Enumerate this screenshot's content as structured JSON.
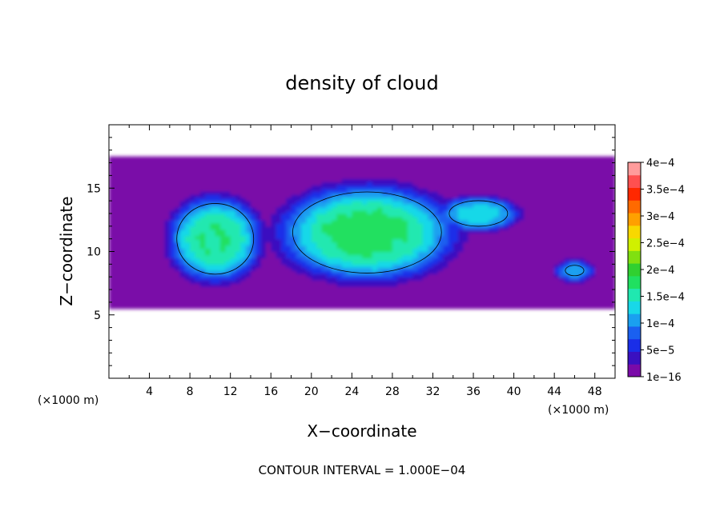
{
  "chart_data": {
    "type": "heatmap",
    "title": "density of cloud",
    "xlabel": "X−coordinate",
    "ylabel": "Z−coordinate",
    "x_unit_left": "(×1000 m)",
    "x_unit_right": "(×1000 m)",
    "xlim": [
      0,
      50
    ],
    "ylim": [
      0,
      20
    ],
    "x_ticks": [
      4,
      8,
      12,
      16,
      20,
      24,
      28,
      32,
      36,
      40,
      44,
      48
    ],
    "y_ticks": [
      5,
      10,
      15
    ],
    "contour_interval_label": "CONTOUR INTERVAL = 1.000E−04",
    "colorbar": {
      "labels": [
        "4e−4",
        "3.5e−4",
        "3e−4",
        "2.5e−4",
        "2e−4",
        "1.5e−4",
        "1e−4",
        "5e−5",
        "1e−16"
      ],
      "bands": [
        {
          "value": 1e-16,
          "color": "#7a0aa8"
        },
        {
          "value": 2.5e-05,
          "color": "#3a10c0"
        },
        {
          "value": 5e-05,
          "color": "#1a2ee8"
        },
        {
          "value": 7.5e-05,
          "color": "#1a60f0"
        },
        {
          "value": 0.0001,
          "color": "#1aa0f0"
        },
        {
          "value": 0.000125,
          "color": "#18d8e8"
        },
        {
          "value": 0.00015,
          "color": "#20e8b0"
        },
        {
          "value": 0.000175,
          "color": "#20e060"
        },
        {
          "value": 0.0002,
          "color": "#30d030"
        },
        {
          "value": 0.000225,
          "color": "#80e010"
        },
        {
          "value": 0.00025,
          "color": "#d0f000"
        },
        {
          "value": 0.000275,
          "color": "#f8d800"
        },
        {
          "value": 0.0003,
          "color": "#ffa000"
        },
        {
          "value": 0.000325,
          "color": "#ff6a00"
        },
        {
          "value": 0.00035,
          "color": "#ff2800"
        },
        {
          "value": 0.000375,
          "color": "#ff5050"
        },
        {
          "value": 0.0004,
          "color": "#ff9c9c"
        }
      ]
    },
    "field": {
      "domain_x": [
        0,
        50
      ],
      "domain_z": [
        5.5,
        17.3
      ],
      "background": 1e-16,
      "blobs": [
        {
          "name": "left cell",
          "cx": 10.5,
          "cz": 11.0,
          "rx": 4.5,
          "rz": 3.3,
          "peak": 0.000175
        },
        {
          "name": "main cell",
          "cx": 25.5,
          "cz": 11.5,
          "rx": 8.5,
          "rz": 3.7,
          "peak": 0.000185
        },
        {
          "name": "anvil",
          "cx": 36.5,
          "cz": 13.0,
          "rx": 4.0,
          "rz": 1.4,
          "peak": 0.000135
        },
        {
          "name": "right cell",
          "cx": 46.0,
          "cz": 8.5,
          "rx": 2.0,
          "rz": 0.9,
          "peak": 0.000105
        }
      ]
    }
  }
}
